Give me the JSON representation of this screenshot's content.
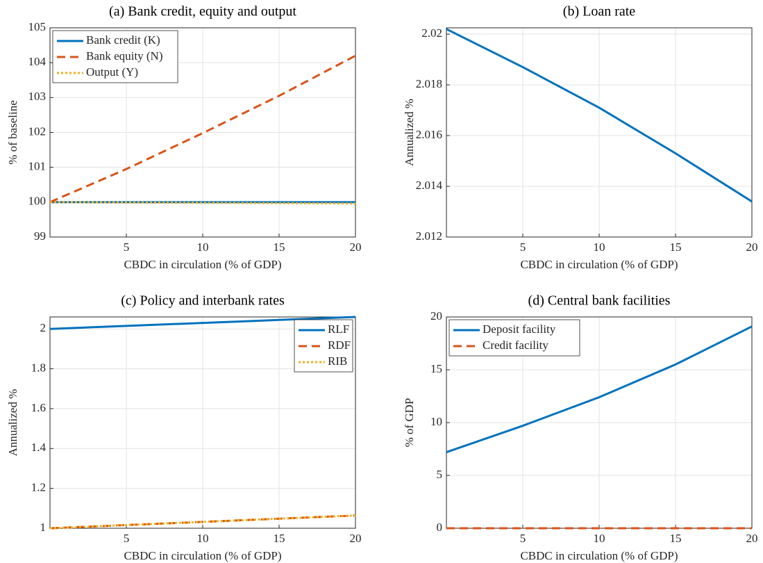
{
  "chart_data": [
    {
      "type": "line",
      "title": "(a) Bank credit, equity and output",
      "xlabel": "CBDC in circulation (% of GDP)",
      "ylabel": "% of baseline",
      "x": [
        0,
        5,
        10,
        15,
        20
      ],
      "xlim": [
        0,
        20
      ],
      "xticks": [
        5,
        10,
        15,
        20
      ],
      "ylim": [
        99,
        105
      ],
      "yticks": [
        99,
        100,
        101,
        102,
        103,
        104,
        105
      ],
      "grid": true,
      "legend": "upper-left",
      "series": [
        {
          "name": "Bank credit (K)",
          "color": "#0072bd",
          "style": "solid",
          "values": [
            100,
            100,
            100,
            100,
            100
          ]
        },
        {
          "name": "Bank equity (N)",
          "color": "#d95319",
          "style": "dashed",
          "values": [
            100,
            100.95,
            101.98,
            103.05,
            104.2
          ]
        },
        {
          "name": "Output (Y)",
          "color": "#edb120",
          "style": "dotted",
          "values": [
            100,
            99.99,
            99.98,
            99.97,
            99.96
          ]
        }
      ]
    },
    {
      "type": "line",
      "title": "(b) Loan rate",
      "xlabel": "CBDC in circulation (% of GDP)",
      "ylabel": "Annualized %",
      "x": [
        0,
        5,
        10,
        15,
        20
      ],
      "xlim": [
        0,
        20
      ],
      "xticks": [
        5,
        10,
        15,
        20
      ],
      "ylim": [
        2.012,
        2.02025
      ],
      "yticks": [
        2.012,
        2.014,
        2.016,
        2.018,
        2.02
      ],
      "grid": true,
      "series": [
        {
          "color": "#0072bd",
          "style": "solid",
          "values": [
            2.0202,
            2.0187,
            2.0171,
            2.0153,
            2.0134
          ]
        }
      ]
    },
    {
      "type": "line",
      "title": "(c) Policy and interbank rates",
      "xlabel": "CBDC in circulation (% of GDP)",
      "ylabel": "Annualized %",
      "x": [
        0,
        5,
        10,
        15,
        20
      ],
      "xlim": [
        0,
        20
      ],
      "xticks": [
        5,
        10,
        15,
        20
      ],
      "ylim": [
        1,
        2.06
      ],
      "yticks": [
        1,
        1.2,
        1.4,
        1.6,
        1.8,
        2
      ],
      "grid": true,
      "legend": "upper-right",
      "series": [
        {
          "name": "RLF",
          "color": "#0072bd",
          "style": "solid",
          "values": [
            2.0,
            2.015,
            2.03,
            2.045,
            2.06
          ]
        },
        {
          "name": "RDF",
          "color": "#d95319",
          "style": "dashed",
          "values": [
            1.0,
            1.016,
            1.032,
            1.048,
            1.064
          ]
        },
        {
          "name": "RIB",
          "color": "#edb120",
          "style": "dotted",
          "values": [
            1.0,
            1.016,
            1.032,
            1.048,
            1.064
          ]
        }
      ]
    },
    {
      "type": "line",
      "title": "(d) Central bank facilities",
      "xlabel": "CBDC in circulation (% of GDP)",
      "ylabel": "% of GDP",
      "x": [
        0,
        5,
        10,
        15,
        20
      ],
      "xlim": [
        0,
        20
      ],
      "xticks": [
        5,
        10,
        15,
        20
      ],
      "ylim": [
        0,
        20
      ],
      "yticks": [
        0,
        5,
        10,
        15,
        20
      ],
      "grid": true,
      "legend": "upper-left",
      "series": [
        {
          "name": "Deposit facility",
          "color": "#0072bd",
          "style": "solid",
          "values": [
            7.2,
            9.7,
            12.4,
            15.5,
            19.1
          ]
        },
        {
          "name": "Credit facility",
          "color": "#d95319",
          "style": "dashed",
          "values": [
            0,
            0,
            0,
            0,
            0
          ]
        }
      ]
    }
  ]
}
